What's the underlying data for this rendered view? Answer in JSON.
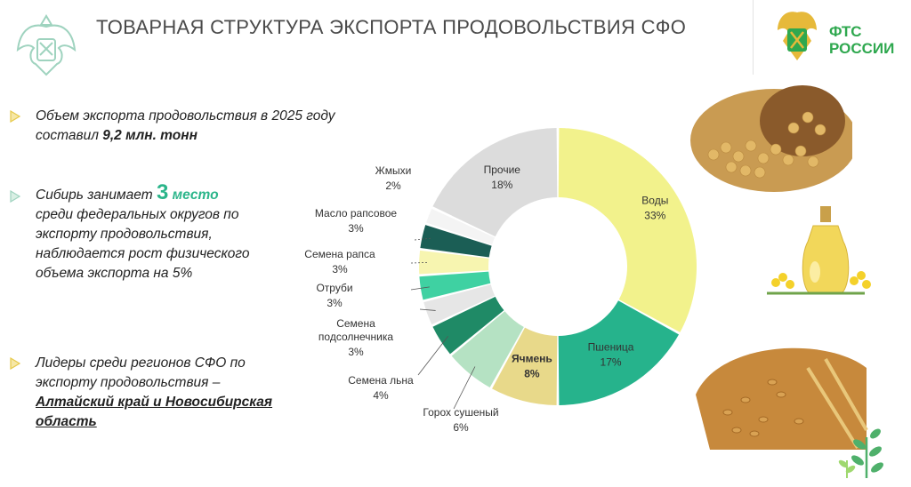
{
  "header": {
    "title": "ТОВАРНАЯ СТРУКТУРА ЭКСПОРТА ПРОДОВОЛЬСТВИЯ СФО",
    "brand_line1": "ФТС",
    "brand_line2": "РОССИИ"
  },
  "bullets": {
    "b1_text": "Объем экспорта продовольствия в 2025 году составил ",
    "b1_value": "9,2 млн. тонн",
    "b2_prefix": "Сибирь занимает",
    "b2_rank": "3",
    "b2_place": "место",
    "b2_text": "среди федеральных округов по экспорту продовольствия, наблюдается рост физического объема экспорта на 5%",
    "b3_text": "Лидеры среди регионов СФО по экспорту продовольствия –",
    "b3_leaders": "Алтайский край и Новосибирская область"
  },
  "colors": {
    "accent_green": "#2bb58a",
    "brand_green": "#2fa84f",
    "bullet_yellow": "#e6c94a"
  },
  "chart_data": {
    "type": "pie",
    "donut": true,
    "unit": "%",
    "slices": [
      {
        "label": "Воды",
        "value": 33,
        "color": "#f2f28c"
      },
      {
        "label": "Пшеница",
        "value": 17,
        "color": "#26b38c"
      },
      {
        "label": "Ячмень",
        "value": 8,
        "color": "#e8d98a"
      },
      {
        "label": "Горох сушеный",
        "value": 6,
        "color": "#b5e2c3"
      },
      {
        "label": "Семена льна",
        "value": 4,
        "color": "#1f8a66"
      },
      {
        "label": "Семена подсолнечника",
        "value": 3,
        "color": "#e6e6e6"
      },
      {
        "label": "Отруби",
        "value": 3,
        "color": "#3fd1a2"
      },
      {
        "label": "Семена рапса",
        "value": 3,
        "color": "#f7f5b0"
      },
      {
        "label": "Масло рапсовое",
        "value": 3,
        "color": "#1b5e55"
      },
      {
        "label": "Жмыхи",
        "value": 2,
        "color": "#f4f4f4"
      },
      {
        "label": "Прочие",
        "value": 18,
        "color": "#dcdcdc"
      }
    ]
  }
}
